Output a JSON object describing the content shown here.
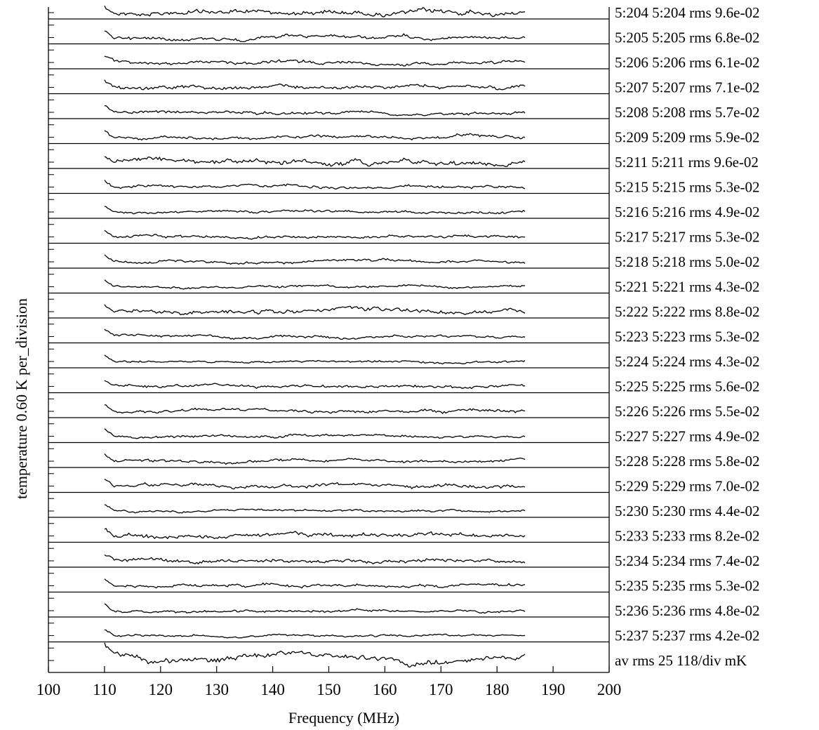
{
  "chart_data": {
    "type": "line",
    "title": "",
    "xlabel": "Frequency (MHz)",
    "ylabel": "temperature  0.60 K  per_division",
    "xlim": [
      100,
      200
    ],
    "x_ticks": [
      100,
      110,
      120,
      130,
      140,
      150,
      160,
      170,
      180,
      190,
      200
    ],
    "x_tick_labels": [
      "100",
      "110",
      "120",
      "130",
      "140",
      "150",
      "160",
      "170",
      "180",
      "190",
      "200"
    ],
    "data_x_range": [
      110,
      185
    ],
    "y_division_K": 0.6,
    "series": [
      {
        "name": "5:204",
        "label": "5:204  5:204 rms 9.6e-02",
        "rms": 0.096
      },
      {
        "name": "5:205",
        "label": "5:205  5:205 rms 6.8e-02",
        "rms": 0.068
      },
      {
        "name": "5:206",
        "label": "5:206  5:206 rms 6.1e-02",
        "rms": 0.061
      },
      {
        "name": "5:207",
        "label": "5:207  5:207 rms 7.1e-02",
        "rms": 0.071
      },
      {
        "name": "5:208",
        "label": "5:208  5:208 rms 5.7e-02",
        "rms": 0.057
      },
      {
        "name": "5:209",
        "label": "5:209  5:209 rms 5.9e-02",
        "rms": 0.059
      },
      {
        "name": "5:211",
        "label": "5:211  5:211 rms 9.6e-02",
        "rms": 0.096
      },
      {
        "name": "5:215",
        "label": "5:215  5:215 rms 5.3e-02",
        "rms": 0.053
      },
      {
        "name": "5:216",
        "label": "5:216  5:216 rms 4.9e-02",
        "rms": 0.049
      },
      {
        "name": "5:217",
        "label": "5:217  5:217 rms 5.3e-02",
        "rms": 0.053
      },
      {
        "name": "5:218",
        "label": "5:218  5:218 rms 5.0e-02",
        "rms": 0.05
      },
      {
        "name": "5:221",
        "label": "5:221  5:221 rms 4.3e-02",
        "rms": 0.043
      },
      {
        "name": "5:222",
        "label": "5:222  5:222 rms 8.8e-02",
        "rms": 0.088
      },
      {
        "name": "5:223",
        "label": "5:223  5:223 rms 5.3e-02",
        "rms": 0.053
      },
      {
        "name": "5:224",
        "label": "5:224  5:224 rms 4.3e-02",
        "rms": 0.043
      },
      {
        "name": "5:225",
        "label": "5:225  5:225 rms 5.6e-02",
        "rms": 0.056
      },
      {
        "name": "5:226",
        "label": "5:226  5:226 rms 5.5e-02",
        "rms": 0.055
      },
      {
        "name": "5:227",
        "label": "5:227  5:227 rms 4.9e-02",
        "rms": 0.049
      },
      {
        "name": "5:228",
        "label": "5:228  5:228 rms 5.8e-02",
        "rms": 0.058
      },
      {
        "name": "5:229",
        "label": "5:229  5:229 rms 7.0e-02",
        "rms": 0.07
      },
      {
        "name": "5:230",
        "label": "5:230  5:230 rms 4.4e-02",
        "rms": 0.044
      },
      {
        "name": "5:233",
        "label": "5:233  5:233 rms 8.2e-02",
        "rms": 0.082
      },
      {
        "name": "5:234",
        "label": "5:234  5:234 rms 7.4e-02",
        "rms": 0.074
      },
      {
        "name": "5:235",
        "label": "5:235  5:235 rms 5.3e-02",
        "rms": 0.053
      },
      {
        "name": "5:236",
        "label": "5:236  5:236 rms 4.8e-02",
        "rms": 0.048
      },
      {
        "name": "5:237",
        "label": "5:237  5:237 rms 4.2e-02",
        "rms": 0.042
      },
      {
        "name": "av",
        "label": "av  rms   25  118/div mK",
        "rms": null
      }
    ],
    "grid": false,
    "legend": "right"
  }
}
